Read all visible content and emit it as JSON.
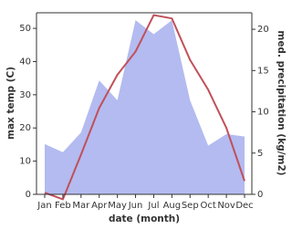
{
  "chart_data": {
    "type": "line-area",
    "x_label": "date (month)",
    "y_label": "max temp (C)",
    "y2_label": "med. precipitation (kg/m2)",
    "categories": [
      "Jan",
      "Feb",
      "Mar",
      "Apr",
      "May",
      "Jun",
      "Jul",
      "Aug",
      "Sep",
      "Oct",
      "Nov",
      "Dec"
    ],
    "series": [
      {
        "name": "max temp",
        "type": "line",
        "color": "#c0505a",
        "values": [
          0.5,
          -1.5,
          12,
          26,
          36,
          43,
          54,
          53,
          40.5,
          31.5,
          20,
          4
        ]
      },
      {
        "name": "precipitation",
        "type": "area",
        "axis": "y2",
        "color": "#b3bbf0",
        "values": [
          6.1,
          5.1,
          7.5,
          13.8,
          11.4,
          21.1,
          19.4,
          21.1,
          11.4,
          5.9,
          7.3,
          7.0
        ]
      }
    ],
    "ylim": [
      0,
      54.7
    ],
    "yticks": [
      0,
      10,
      20,
      30,
      40,
      50
    ],
    "y2lim": [
      0,
      22
    ],
    "y2ticks": [
      0,
      5,
      10,
      15,
      20
    ]
  }
}
